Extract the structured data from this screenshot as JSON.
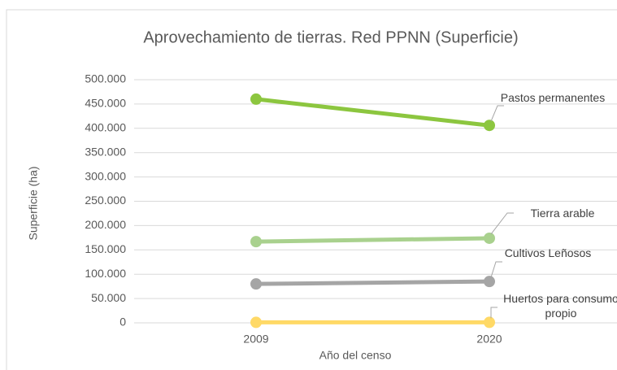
{
  "chart_data": {
    "type": "line",
    "title": "Aprovechamiento de tierras. Red PPNN (Superficie)",
    "x_label": "Año del censo",
    "y_label": "Superficie (ha)",
    "categories": [
      "2009",
      "2020"
    ],
    "series": [
      {
        "name": "Pastos permanentes",
        "color": "#8cc63f",
        "values": [
          460000,
          406000
        ]
      },
      {
        "name": "Tierra arable",
        "color": "#a9d18e",
        "values": [
          167000,
          174000
        ]
      },
      {
        "name": "Cultivos Leñosos",
        "color": "#a5a5a5",
        "values": [
          80000,
          85000
        ]
      },
      {
        "name": "Huertos para consumo propio",
        "color": "#ffd966",
        "values": [
          1000,
          1000
        ]
      }
    ],
    "ylim": [
      0,
      500000
    ],
    "yticks": [
      0,
      {
        "value": 50000,
        "label": "50.000"
      },
      {
        "value": 100000,
        "label": "100.000"
      },
      {
        "value": 150000,
        "label": "150.000"
      },
      {
        "value": 200000,
        "label": "200.000"
      },
      {
        "value": 250000,
        "label": "250.000"
      },
      {
        "value": 300000,
        "label": "300.000"
      },
      {
        "value": 350000,
        "label": "350.000"
      },
      {
        "value": 400000,
        "label": "400.000"
      },
      {
        "value": 450000,
        "label": "450.000"
      },
      {
        "value": 500000,
        "label": "500.000"
      }
    ],
    "grid": true
  }
}
